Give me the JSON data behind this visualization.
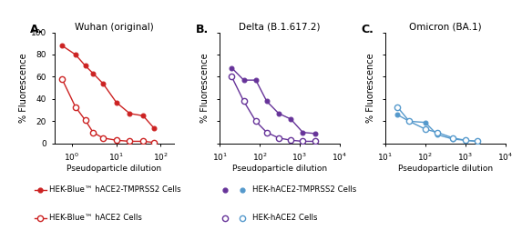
{
  "panel_A": {
    "title": "Wuhan (original)",
    "label": "A.",
    "filled_x": [
      0.6,
      1.2,
      2,
      3,
      5,
      10,
      20,
      40,
      70
    ],
    "filled_y": [
      88,
      80,
      70,
      63,
      54,
      37,
      27,
      25,
      14
    ],
    "open_x": [
      0.6,
      1.2,
      2,
      3,
      5,
      10,
      20,
      40,
      70
    ],
    "open_y": [
      58,
      33,
      21,
      10,
      5,
      3,
      2,
      2,
      1
    ],
    "xlim": [
      0.4,
      200
    ],
    "ylim": [
      0,
      100
    ],
    "xticks": [
      1,
      10,
      100
    ],
    "color": "#cc2222"
  },
  "panel_B": {
    "title": "Delta (B.1.617.2)",
    "label": "B.",
    "filled_x": [
      20,
      40,
      80,
      150,
      300,
      600,
      1200,
      2500
    ],
    "filled_y": [
      68,
      57,
      57,
      38,
      27,
      22,
      10,
      9
    ],
    "open_x": [
      20,
      40,
      80,
      150,
      300,
      600,
      1200,
      2500
    ],
    "open_y": [
      60,
      38,
      20,
      10,
      5,
      3,
      2,
      2
    ],
    "xlim": [
      10,
      10000
    ],
    "ylim": [
      0,
      100
    ],
    "xticks": [
      10,
      100,
      1000,
      10000
    ],
    "color": "#663399"
  },
  "panel_C": {
    "title": "Omicron (BA.1)",
    "label": "C.",
    "filled_x": [
      20,
      40,
      100,
      200,
      500,
      1000,
      2000
    ],
    "filled_y": [
      26,
      20,
      19,
      8,
      4,
      3,
      2
    ],
    "open_x": [
      20,
      40,
      100,
      200,
      500,
      1000,
      2000
    ],
    "open_y": [
      33,
      20,
      13,
      10,
      5,
      3,
      2
    ],
    "xlim": [
      10,
      10000
    ],
    "ylim": [
      0,
      100
    ],
    "xticks": [
      10,
      100,
      1000,
      10000
    ],
    "color": "#5599cc"
  },
  "ylabel": "% Fluorescence",
  "xlabel": "Pseudoparticle dilution",
  "legend_left_filled": "HEK-Blue™ hACE2-TMPRSS2 Cells",
  "legend_left_open": "HEK-Blue™ hACE2 Cells",
  "legend_right_filled": "HEK-hACE2-TMPRSS2 Cells",
  "legend_right_open": "HEK-hACE2 Cells"
}
